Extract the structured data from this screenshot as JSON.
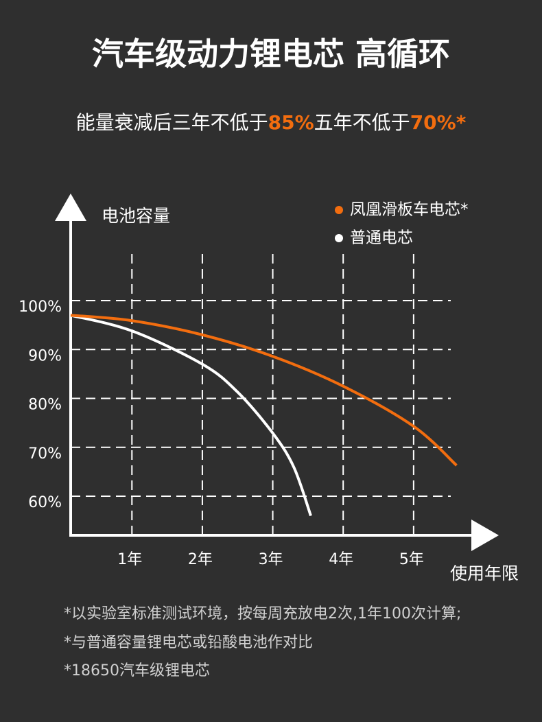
{
  "header": {
    "title": "汽车级动力锂电芯 高循环",
    "subtitle": [
      {
        "text": "能量衰减后三年不低于",
        "highlight": false
      },
      {
        "text": "85%",
        "highlight": true
      },
      {
        "text": "五年不低于",
        "highlight": false
      },
      {
        "text": "70%*",
        "highlight": true
      }
    ],
    "highlight_color": "#f26d0f"
  },
  "chart_data": {
    "type": "line",
    "y_label": "电池容量",
    "x_label": "使用年限",
    "xlim": [
      0.13,
      6.19
    ],
    "ylim": [
      52,
      116
    ],
    "xticks": [
      {
        "value": 1,
        "label": "1年"
      },
      {
        "value": 2,
        "label": "2年"
      },
      {
        "value": 3,
        "label": "3年"
      },
      {
        "value": 4,
        "label": "4年"
      },
      {
        "value": 5,
        "label": "5年"
      }
    ],
    "yticks": [
      {
        "value": 60,
        "label": "60%"
      },
      {
        "value": 70,
        "label": "70%"
      },
      {
        "value": 80,
        "label": "80%"
      },
      {
        "value": 90,
        "label": "90%"
      },
      {
        "value": 100,
        "label": "100%"
      }
    ],
    "grid": true,
    "series": [
      {
        "name": "凤凰滑板车电芯*",
        "color": "#f26d0f",
        "x": [
          0.13,
          1,
          2,
          3,
          4,
          5,
          5.61
        ],
        "values": [
          97,
          95.9,
          93,
          88.6,
          82.5,
          74.3,
          66.3
        ]
      },
      {
        "name": "普通电芯",
        "color": "#ffffff",
        "x": [
          0.13,
          1,
          2,
          2.5,
          3,
          3.3,
          3.54
        ],
        "values": [
          97,
          93.8,
          87,
          81.3,
          72.9,
          65.9,
          56
        ]
      }
    ]
  },
  "footnotes": [
    "*以实验室标准测试环境，按每周充放电2次,1年100次计算;",
    "*与普通容量锂电芯或铅酸电池作对比",
    "*18650汽车级锂电芯"
  ]
}
